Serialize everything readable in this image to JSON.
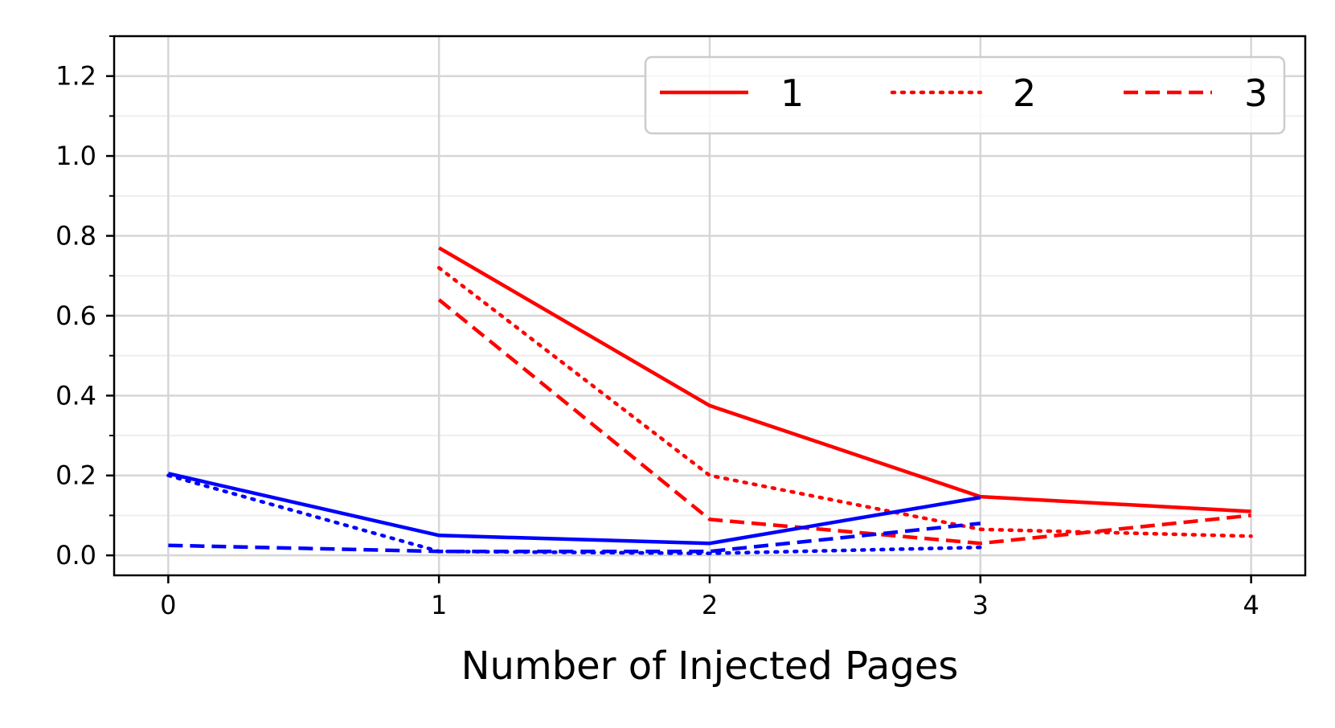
{
  "chart_data": {
    "type": "line",
    "title": "",
    "xlabel": "Number of Injected Pages",
    "ylabel": "",
    "xlim": [
      -0.2,
      4.2
    ],
    "ylim": [
      -0.05,
      1.3
    ],
    "x_ticks": [
      "0",
      "1",
      "2",
      "3",
      "4"
    ],
    "y_ticks": [
      "0.0",
      "0.2",
      "0.4",
      "0.6",
      "0.8",
      "1.0",
      "1.2"
    ],
    "grid": true,
    "legend": {
      "placement": "top-right",
      "columns": 3
    },
    "series": [
      {
        "name": "1",
        "color": "#ff0000",
        "style": "solid",
        "x": [
          1,
          2,
          3,
          4
        ],
        "values": [
          0.77,
          0.375,
          0.147,
          0.11
        ]
      },
      {
        "name": "2",
        "color": "#ff0000",
        "style": "dotted",
        "x": [
          1,
          2,
          3,
          4
        ],
        "values": [
          0.72,
          0.2,
          0.065,
          0.048
        ]
      },
      {
        "name": "3",
        "color": "#ff0000",
        "style": "dashed",
        "x": [
          1,
          2,
          3,
          4
        ],
        "values": [
          0.64,
          0.09,
          0.03,
          0.1
        ]
      },
      {
        "color": "#0000ff",
        "style": "solid",
        "x": [
          0,
          1,
          2,
          3
        ],
        "values": [
          0.205,
          0.05,
          0.03,
          0.145
        ]
      },
      {
        "color": "#0000ff",
        "style": "dotted",
        "x": [
          0,
          1,
          2,
          3
        ],
        "values": [
          0.2,
          0.01,
          0.005,
          0.02
        ]
      },
      {
        "color": "#0000ff",
        "style": "dashed",
        "x": [
          0,
          1,
          2,
          3
        ],
        "values": [
          0.025,
          0.01,
          0.01,
          0.08
        ]
      }
    ]
  }
}
